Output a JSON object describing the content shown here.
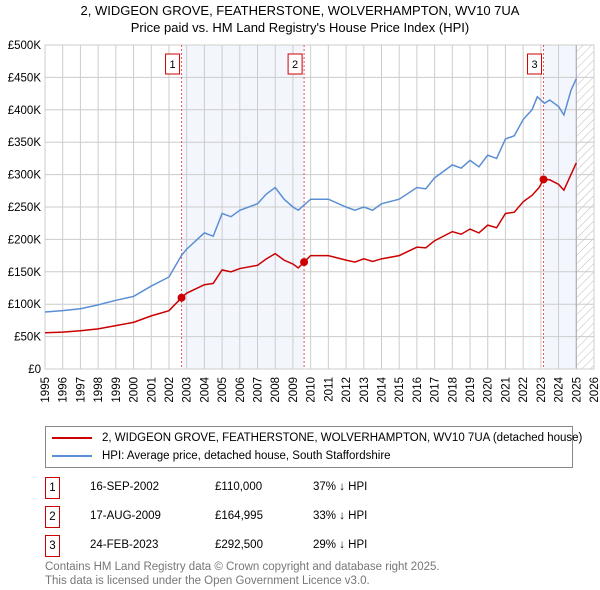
{
  "title_line1": "2, WIDGEON GROVE, FEATHERSTONE, WOLVERHAMPTON, WV10 7UA",
  "title_line2": "Price paid vs. HM Land Registry's House Price Index (HPI)",
  "chart_data": {
    "type": "line",
    "title": "2, WIDGEON GROVE, FEATHERSTONE, WOLVERHAMPTON, WV10 7UA — Price paid vs. HM Land Registry's House Price Index (HPI)",
    "xlim": [
      1995,
      2026
    ],
    "ylim": [
      0,
      500000
    ],
    "x_ticks": [
      1995,
      1996,
      1997,
      1998,
      1999,
      2000,
      2001,
      2002,
      2003,
      2004,
      2005,
      2006,
      2007,
      2008,
      2009,
      2010,
      2011,
      2012,
      2013,
      2014,
      2015,
      2016,
      2017,
      2018,
      2019,
      2020,
      2021,
      2022,
      2023,
      2024,
      2025,
      2026
    ],
    "y_ticks": [
      0,
      50000,
      100000,
      150000,
      200000,
      250000,
      300000,
      350000,
      400000,
      450000,
      500000
    ],
    "y_tick_labels": [
      "£0",
      "£50K",
      "£100K",
      "£150K",
      "£200K",
      "£250K",
      "£300K",
      "£350K",
      "£400K",
      "£450K",
      "£500K"
    ],
    "grid": true,
    "forecast_from": 2025,
    "series": [
      {
        "name": "2, WIDGEON GROVE, FEATHERSTONE, WOLVERHAMPTON, WV10 7UA (detached house)",
        "color": "#cc0000",
        "x": [
          1995,
          1996,
          1997,
          1998,
          1999,
          2000,
          2001,
          2002,
          2002.71,
          2003,
          2004,
          2004.5,
          2005,
          2005.5,
          2006,
          2007,
          2007.5,
          2008,
          2008.5,
          2009,
          2009.3,
          2009.63,
          2010,
          2011,
          2012,
          2012.5,
          2013,
          2013.5,
          2014,
          2015,
          2016,
          2016.5,
          2017,
          2018,
          2018.5,
          2019,
          2019.5,
          2020,
          2020.5,
          2021,
          2021.5,
          2022,
          2022.5,
          2022.9,
          2023.15,
          2023.5,
          2024,
          2024.3,
          2024.7,
          2025
        ],
        "y": [
          56000,
          57000,
          59000,
          62000,
          67000,
          72000,
          82000,
          90000,
          110000,
          117000,
          130000,
          132000,
          153000,
          150000,
          155000,
          160000,
          170000,
          178000,
          168000,
          162000,
          156000,
          164995,
          175000,
          175000,
          168000,
          165000,
          170000,
          166000,
          170000,
          175000,
          188000,
          187000,
          198000,
          212000,
          208000,
          216000,
          210000,
          222000,
          218000,
          240000,
          242000,
          258000,
          268000,
          280000,
          292500,
          292000,
          285000,
          276000,
          300000,
          318000
        ]
      },
      {
        "name": "HPI: Average price, detached house, South Staffordshire",
        "color": "#5b8fd4",
        "x": [
          1995,
          1996,
          1997,
          1998,
          1999,
          2000,
          2001,
          2002,
          2002.7,
          2003,
          2004,
          2004.5,
          2005,
          2005.5,
          2006,
          2007,
          2007.5,
          2008,
          2008.5,
          2009,
          2009.3,
          2010,
          2011,
          2012,
          2012.5,
          2013,
          2013.5,
          2014,
          2015,
          2016,
          2016.5,
          2017,
          2018,
          2018.5,
          2019,
          2019.5,
          2020,
          2020.5,
          2021,
          2021.5,
          2022,
          2022.5,
          2022.8,
          2023.2,
          2023.5,
          2024,
          2024.3,
          2024.7,
          2025
        ],
        "y": [
          88000,
          90000,
          93000,
          99000,
          106000,
          112000,
          128000,
          142000,
          175000,
          185000,
          210000,
          205000,
          240000,
          235000,
          245000,
          255000,
          270000,
          280000,
          262000,
          250000,
          245000,
          262000,
          262000,
          250000,
          245000,
          250000,
          245000,
          255000,
          262000,
          280000,
          278000,
          295000,
          315000,
          310000,
          322000,
          312000,
          330000,
          325000,
          355000,
          360000,
          385000,
          400000,
          420000,
          410000,
          415000,
          405000,
          392000,
          430000,
          448000
        ]
      }
    ],
    "sales": [
      {
        "label": "1",
        "x": 2002.71,
        "price": 110000,
        "date": "16-SEP-2002",
        "price_text": "£110,000",
        "hpi_text": "37% ↓ HPI"
      },
      {
        "label": "2",
        "x": 2009.63,
        "price": 164995,
        "date": "17-AUG-2009",
        "price_text": "£164,995",
        "hpi_text": "33% ↓ HPI"
      },
      {
        "label": "3",
        "x": 2023.15,
        "price": 292500,
        "date": "24-FEB-2023",
        "price_text": "£292,500",
        "hpi_text": "29% ↓ HPI"
      }
    ],
    "legend_position": "bottom"
  },
  "legend": {
    "red_label": "2, WIDGEON GROVE, FEATHERSTONE, WOLVERHAMPTON, WV10 7UA (detached house)",
    "blue_label": "HPI: Average price, detached house, South Staffordshire"
  },
  "footer_line1": "Contains HM Land Registry data © Crown copyright and database right 2025.",
  "footer_line2": "This data is licensed under the Open Government Licence v3.0."
}
